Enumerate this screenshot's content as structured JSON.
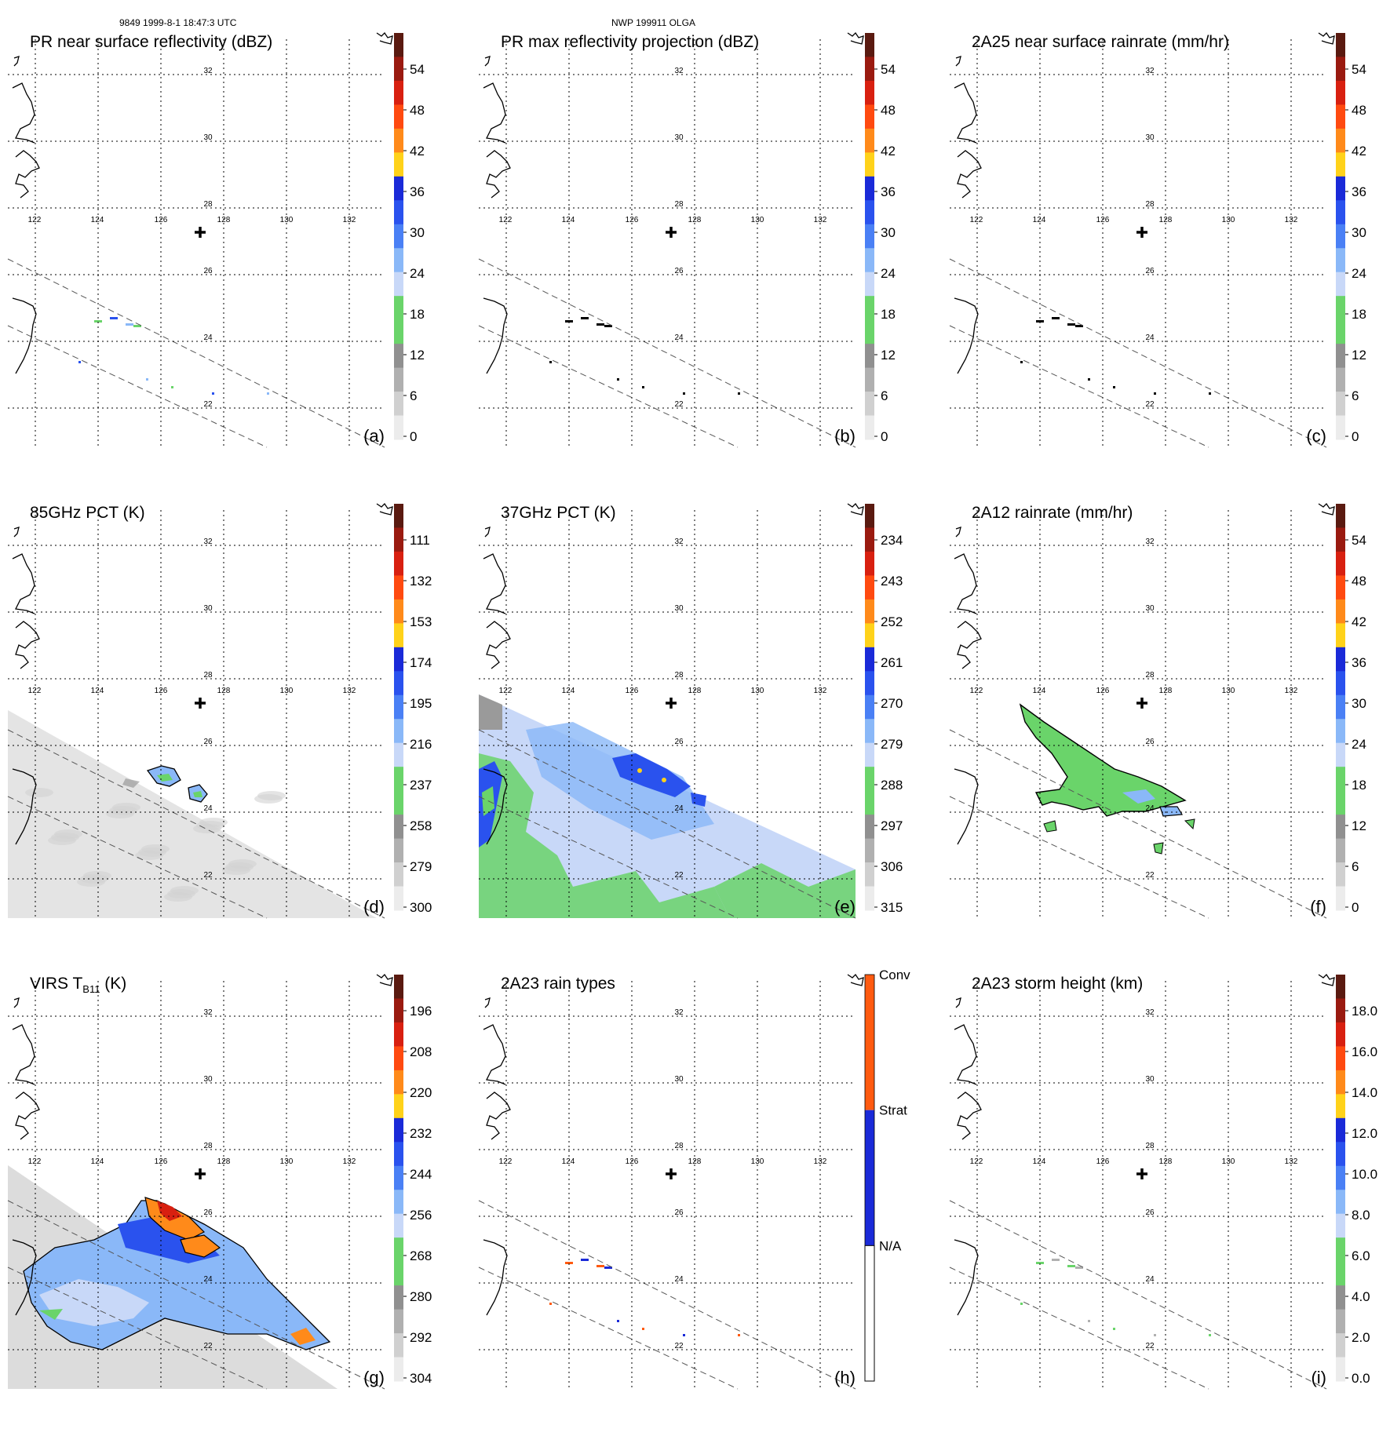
{
  "header": {
    "left": "9849 1999-8-1 18:47:3 UTC",
    "center": "NWP 199911 OLGA"
  },
  "map": {
    "lon_ticks": [
      "122",
      "124",
      "126",
      "128",
      "130",
      "132"
    ],
    "lat_ticks": [
      "32",
      "30",
      "28",
      "26",
      "24",
      "22"
    ],
    "storm_center_marker": "plus-icon"
  },
  "panels": [
    {
      "id": "a",
      "title": "PR near surface reflectivity (dBZ)",
      "letter": "(a)",
      "colorbar_labels": [
        "54",
        "48",
        "42",
        "36",
        "30",
        "24",
        "18",
        "12",
        "6",
        "0"
      ],
      "swath": "narrow",
      "fill": "none"
    },
    {
      "id": "b",
      "title": "PR max reflectivity projection (dBZ)",
      "letter": "(b)",
      "colorbar_labels": [
        "54",
        "48",
        "42",
        "36",
        "30",
        "24",
        "18",
        "12",
        "6",
        "0"
      ],
      "swath": "narrow",
      "fill": "none"
    },
    {
      "id": "c",
      "title": "2A25 near surface rainrate (mm/hr)",
      "letter": "(c)",
      "colorbar_labels": [
        "54",
        "48",
        "42",
        "36",
        "30",
        "24",
        "18",
        "12",
        "6",
        "0"
      ],
      "swath": "narrow",
      "fill": "none"
    },
    {
      "id": "d",
      "title": "85GHz PCT (K)",
      "letter": "(d)",
      "colorbar_labels": [
        "111",
        "132",
        "153",
        "174",
        "195",
        "216",
        "237",
        "258",
        "279",
        "300"
      ],
      "swath": "wide",
      "fill": "gray"
    },
    {
      "id": "e",
      "title": "37GHz PCT (K)",
      "letter": "(e)",
      "colorbar_labels": [
        "234",
        "243",
        "252",
        "261",
        "270",
        "279",
        "288",
        "297",
        "306",
        "315"
      ],
      "swath": "wide",
      "fill": "blue-green"
    },
    {
      "id": "f",
      "title": "2A12 rainrate (mm/hr)",
      "letter": "(f)",
      "colorbar_labels": [
        "54",
        "48",
        "42",
        "36",
        "30",
        "24",
        "18",
        "12",
        "6",
        "0"
      ],
      "swath": "wide",
      "fill": "patch"
    },
    {
      "id": "g",
      "title_main": "VIRS T",
      "title_sub": "B11",
      "title_tail": " (K)",
      "letter": "(g)",
      "colorbar_labels": [
        "196",
        "208",
        "220",
        "232",
        "244",
        "256",
        "268",
        "280",
        "292",
        "304"
      ],
      "swath": "wide",
      "fill": "ir"
    },
    {
      "id": "h",
      "title": "2A23 rain types",
      "letter": "(h)",
      "colorbar_labels": [
        "Conv",
        "Strat",
        "N/A"
      ],
      "swath": "narrow",
      "fill": "none"
    },
    {
      "id": "i",
      "title": "2A23 storm height (km)",
      "letter": "(i)",
      "colorbar_labels": [
        "18.0",
        "16.0",
        "14.0",
        "12.0",
        "10.0",
        "8.0",
        "6.0",
        "4.0",
        "2.0",
        "0.0"
      ],
      "swath": "narrow",
      "fill": "none"
    }
  ],
  "palette": {
    "main": [
      "#5a1a10",
      "#9a1a10",
      "#d82010",
      "#ff4a10",
      "#ff8a1a",
      "#ffd21a",
      "#1a2ad8",
      "#2a52ee",
      "#4a80f5",
      "#8ab8f8",
      "#c8d8f8",
      "#6ad46a",
      "#6ad46a",
      "#909090",
      "#b0b0b0",
      "#d0d0d0",
      "#ececec"
    ],
    "raintype": [
      "#ff5a10",
      "#1a2ad8",
      "#ffffff"
    ]
  }
}
